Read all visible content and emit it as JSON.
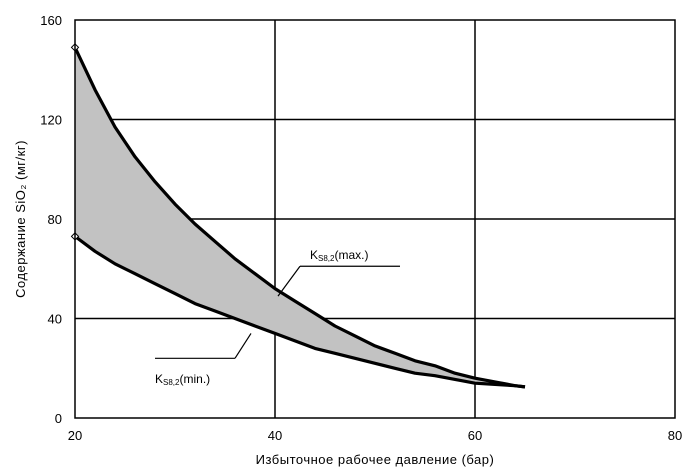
{
  "chart_data": {
    "type": "area",
    "xlabel": "Избыточное рабочее давление (бар)",
    "ylabel": "Содержание SiO₂ (мг/кг)",
    "xlim": [
      20,
      80
    ],
    "ylim": [
      0,
      160
    ],
    "x_ticks": [
      "20",
      "40",
      "60",
      "80"
    ],
    "y_ticks": [
      "0",
      "40",
      "80",
      "120",
      "160"
    ],
    "grid": true,
    "fill_color": "#c2c2c2",
    "line_color": "#000000",
    "series": [
      {
        "name": "max",
        "x": [
          20,
          22,
          24,
          26,
          28,
          30,
          32,
          34,
          36,
          38,
          40,
          42,
          44,
          46,
          48,
          50,
          52,
          54,
          56,
          58,
          60,
          62,
          64,
          65
        ],
        "y": [
          149,
          132,
          117,
          105,
          95,
          86,
          78,
          71,
          64,
          58,
          52,
          47,
          42,
          37,
          33,
          29,
          26,
          23,
          21,
          18,
          16,
          14.5,
          13,
          12.5
        ]
      },
      {
        "name": "min",
        "x": [
          20,
          22,
          24,
          26,
          28,
          30,
          32,
          34,
          36,
          38,
          40,
          42,
          44,
          46,
          48,
          50,
          52,
          54,
          56,
          58,
          60,
          62,
          64,
          65
        ],
        "y": [
          73,
          67,
          62,
          58,
          54,
          50,
          46,
          43,
          40,
          37,
          34,
          31,
          28,
          26,
          24,
          22,
          20,
          18,
          17,
          15.5,
          14,
          13.5,
          13,
          12.5
        ]
      }
    ],
    "annotations": {
      "max": {
        "main": "K",
        "sub": "S8,2",
        "suffix": "(max.)"
      },
      "min": {
        "main": "K",
        "sub": "S8,2",
        "suffix": "(min.)"
      }
    }
  }
}
